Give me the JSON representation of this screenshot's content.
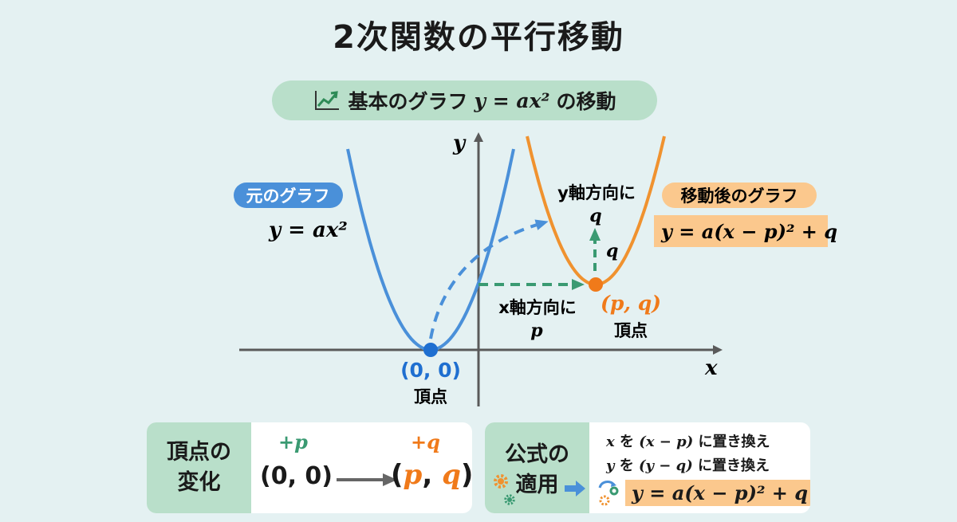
{
  "title": "2次関数の平行移動",
  "subtitle": {
    "text": "基本のグラフ",
    "formula": "y = ax²",
    "suffix": "の移動",
    "icon": "chart-trend-icon"
  },
  "axes": {
    "x_label": "x",
    "y_label": "y"
  },
  "original": {
    "badge": "元のグラフ",
    "formula": "y = ax²",
    "vertex_coord": "(0, 0)",
    "vertex_label": "頂点",
    "color": "#4a90d9"
  },
  "moved": {
    "badge": "移動後のグラフ",
    "formula": "y = a(x − p)² + q",
    "vertex_coord": "(p, q)",
    "vertex_label": "頂点",
    "color": "#f0922f"
  },
  "shift_x": {
    "label": "x軸方向に",
    "value": "p"
  },
  "shift_y": {
    "label": "y軸方向に",
    "value": "q",
    "arrow_value": "q"
  },
  "arrow_color": "#3a9a72",
  "vertex_box": {
    "head_line1": "頂点の",
    "head_line2": "変化",
    "plus_p": "+p",
    "plus_q": "+q",
    "from": "(0, 0)",
    "to_open": "(",
    "to_p": "p",
    "to_comma": ", ",
    "to_q": "q",
    "to_close": ")"
  },
  "formula_box": {
    "head_line1": "公式の",
    "head_line2": "適用",
    "line1_var": "x",
    "line1_mid": "を",
    "line1_expr": "(x − p)",
    "line1_end": "に置き換え",
    "line2_var": "y",
    "line2_mid": "を",
    "line2_expr": "(y − q)",
    "line2_end": "に置き換え",
    "result": "y = a(x − p)² + q",
    "icons": [
      "gear-icon",
      "gear-icon",
      "arrow-right-icon",
      "cycle-arrows-icon"
    ]
  }
}
